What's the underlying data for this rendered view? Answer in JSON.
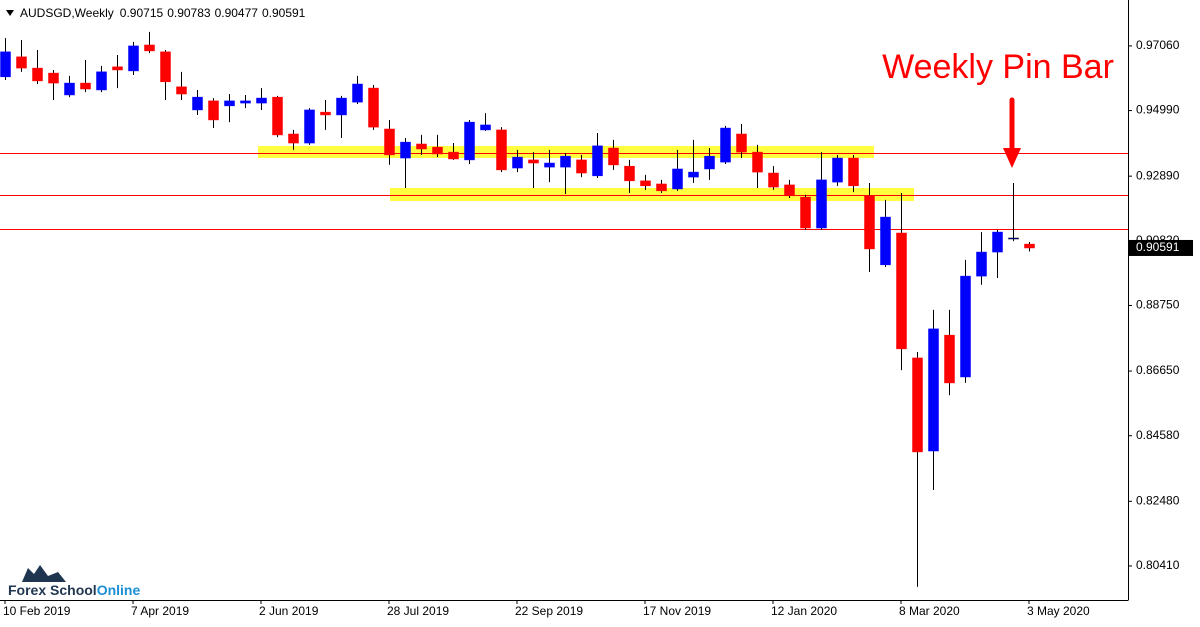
{
  "chart_data": {
    "type": "candlestick",
    "symbol": "AUDSGD,Weekly",
    "annotation": "Weekly Pin Bar",
    "watermark_brand": "Forex School",
    "watermark_accent": "Online",
    "categories": [
      "10 Feb 2019",
      null,
      null,
      null,
      null,
      null,
      null,
      null,
      "7 Apr 2019",
      null,
      null,
      null,
      null,
      null,
      null,
      null,
      "2 Jun 2019",
      null,
      null,
      null,
      null,
      null,
      null,
      null,
      "28 Jul 2019",
      null,
      null,
      null,
      null,
      null,
      null,
      null,
      "22 Sep 2019",
      null,
      null,
      null,
      null,
      null,
      null,
      null,
      "17 Nov 2019",
      null,
      null,
      null,
      null,
      null,
      null,
      null,
      "12 Jan 2020",
      null,
      null,
      null,
      null,
      null,
      null,
      null,
      "8 Mar 2020",
      null,
      null,
      null,
      null,
      null,
      null,
      null,
      "3 May 2020"
    ],
    "open": [
      0.9607,
      0.9671,
      0.9635,
      0.9619,
      0.9549,
      0.9587,
      0.9565,
      0.9639,
      0.9626,
      0.9709,
      0.9687,
      0.9575,
      0.9501,
      0.953,
      0.9514,
      0.9523,
      0.9523,
      0.9542,
      0.9424,
      0.9395,
      0.9494,
      0.9485,
      0.9526,
      0.9571,
      0.944,
      0.9347,
      0.9392,
      0.9382,
      0.9366,
      0.9341,
      0.9437,
      0.9437,
      0.9315,
      0.9341,
      0.9318,
      0.9318,
      0.9341,
      0.929,
      0.9379,
      0.9321,
      0.9274,
      0.9264,
      0.9248,
      0.9286,
      0.9312,
      0.9334,
      0.9424,
      0.9366,
      0.9299,
      0.9261,
      0.9222,
      0.9123,
      0.927,
      0.9347,
      0.9226,
      0.9005,
      0.9107,
      0.8707,
      0.8409,
      0.878,
      0.8646,
      0.8969,
      0.9046,
      0.9088,
      0.90715
    ],
    "high": [
      0.9731,
      0.9725,
      0.9693,
      0.9629,
      0.961,
      0.9661,
      0.9642,
      0.9677,
      0.9719,
      0.9751,
      0.9693,
      0.9623,
      0.9565,
      0.9539,
      0.9552,
      0.9549,
      0.9571,
      0.9546,
      0.9437,
      0.9507,
      0.9533,
      0.9546,
      0.961,
      0.9581,
      0.9469,
      0.9411,
      0.9421,
      0.9421,
      0.9395,
      0.9469,
      0.9491,
      0.9446,
      0.9373,
      0.9366,
      0.9373,
      0.9363,
      0.9357,
      0.9427,
      0.9405,
      0.9341,
      0.9293,
      0.9277,
      0.9373,
      0.9405,
      0.9379,
      0.945,
      0.9456,
      0.9389,
      0.9321,
      0.9277,
      0.9229,
      0.9366,
      0.9357,
      0.9357,
      0.9267,
      0.9213,
      0.9235,
      0.8726,
      0.8861,
      0.8861,
      0.9021,
      0.911,
      0.9117,
      0.9267,
      0.90783
    ],
    "low": [
      0.9597,
      0.9623,
      0.9584,
      0.9533,
      0.9542,
      0.9558,
      0.9558,
      0.9571,
      0.9613,
      0.9683,
      0.9533,
      0.9533,
      0.9485,
      0.9443,
      0.9462,
      0.9507,
      0.9501,
      0.9414,
      0.9373,
      0.9389,
      0.9437,
      0.9411,
      0.952,
      0.9437,
      0.9325,
      0.9251,
      0.9357,
      0.935,
      0.9341,
      0.9328,
      0.9434,
      0.9302,
      0.9302,
      0.9251,
      0.927,
      0.9232,
      0.9286,
      0.9283,
      0.9309,
      0.9235,
      0.9245,
      0.9235,
      0.9242,
      0.9267,
      0.9277,
      0.9328,
      0.9347,
      0.9251,
      0.9245,
      0.9219,
      0.9117,
      0.9117,
      0.9258,
      0.9238,
      0.8982,
      0.8998,
      0.8668,
      0.7974,
      0.8284,
      0.8588,
      0.8627,
      0.8941,
      0.8963,
      0.9081,
      0.90477
    ],
    "close": [
      0.9687,
      0.9635,
      0.9594,
      0.9587,
      0.9587,
      0.9568,
      0.9623,
      0.9629,
      0.9706,
      0.969,
      0.9591,
      0.9552,
      0.9542,
      0.9469,
      0.953,
      0.953,
      0.9539,
      0.9421,
      0.9395,
      0.9501,
      0.9485,
      0.9539,
      0.9584,
      0.9446,
      0.9357,
      0.9398,
      0.9376,
      0.936,
      0.9344,
      0.9462,
      0.9453,
      0.9309,
      0.935,
      0.9331,
      0.9331,
      0.9353,
      0.9299,
      0.9386,
      0.9325,
      0.9274,
      0.9258,
      0.9242,
      0.9312,
      0.9302,
      0.9353,
      0.9443,
      0.9366,
      0.9302,
      0.9254,
      0.9226,
      0.9123,
      0.9277,
      0.9347,
      0.9258,
      0.9056,
      0.9158,
      0.8736,
      0.8406,
      0.88,
      0.8627,
      0.8969,
      0.9046,
      0.911,
      0.9091,
      0.90591
    ],
    "bull_color": "#0000ff",
    "bear_color": "#ff0000",
    "wick_color": "#000000",
    "levels": [
      0.9363,
      0.9229,
      0.912
    ],
    "level_color": "#ff0000",
    "ylim": [
      0.7932,
      0.9853
    ],
    "yticks": [
      {
        "value": 0.9706,
        "label": "0.97060"
      },
      {
        "value": 0.9499,
        "label": "0.94990"
      },
      {
        "value": 0.9289,
        "label": "0.92890"
      },
      {
        "value": 0.9082,
        "label": "0.90820"
      },
      {
        "value": 0.8875,
        "label": "0.88750"
      },
      {
        "value": 0.8665,
        "label": "0.86650"
      },
      {
        "value": 0.8458,
        "label": "0.84580"
      },
      {
        "value": 0.8248,
        "label": "0.82480"
      },
      {
        "value": 0.8041,
        "label": "0.80410"
      }
    ],
    "grid": false
  }
}
